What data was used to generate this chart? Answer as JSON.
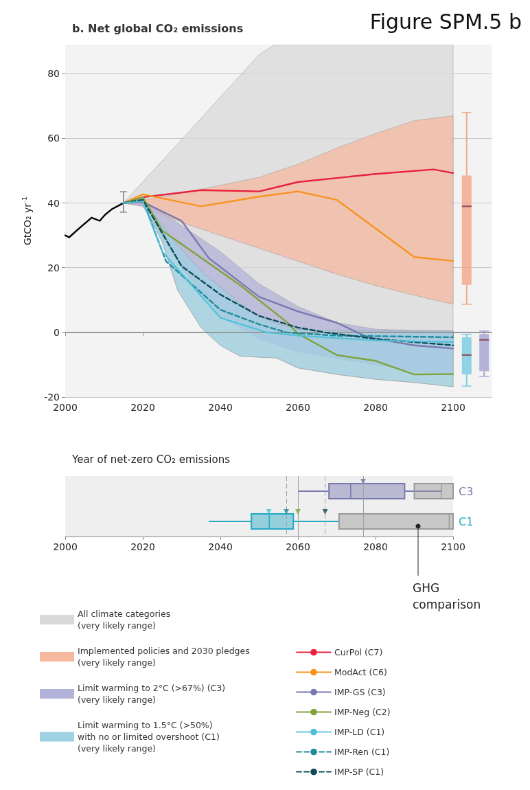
{
  "chart_data": [
    {
      "type": "line",
      "title": "b. Net global CO₂ emissions",
      "ylabel": "GtCO₂ yr$^{-1}$",
      "annotations": [
        "Figure SPM.5 b"
      ],
      "xlim": [
        2000,
        2110
      ],
      "xticks": [
        2000,
        2020,
        2040,
        2060,
        2080,
        2100
      ],
      "ylim": [
        -20,
        89
      ],
      "yticks": [
        -20,
        0,
        20,
        40,
        60,
        80
      ],
      "grid": "y",
      "legend": "bottom",
      "ref_lines": [
        {
          "axis": "y",
          "value": 0,
          "color": "#999999",
          "line_style": "solid"
        }
      ],
      "series": [
        {
          "name": "All climate categories\n(very likely range)",
          "type": "area",
          "color": "#d9d9d9",
          "x": [
            2015,
            2020,
            2025,
            2029,
            2035,
            2040,
            2045,
            2050,
            2054,
            2060,
            2070,
            2080,
            2090,
            2100
          ],
          "values": [
            null,
            null,
            null,
            null,
            null,
            null,
            null,
            null,
            null,
            null,
            null,
            null,
            null,
            null
          ],
          "upper": [
            40,
            46.6,
            53.1,
            58.3,
            66.2,
            72.8,
            79.3,
            85.9,
            89,
            89,
            89,
            89,
            89,
            89
          ],
          "lower": [
            40,
            40,
            28,
            13,
            1.5,
            -4,
            -7.3,
            -7.7,
            -7.8,
            -11,
            -13,
            -14.5,
            -15.5,
            -16.8
          ]
        },
        {
          "name": "Implemented policies and 2030 pledges\n(very likely range)",
          "type": "area",
          "color": "#f6b9a0",
          "x": [
            2015,
            2020,
            2030,
            2040,
            2050,
            2060,
            2070,
            2080,
            2090,
            2100
          ],
          "values": [
            null,
            null,
            null,
            null,
            null,
            null,
            null,
            null,
            null,
            null
          ],
          "upper": [
            40,
            41,
            43,
            45.5,
            48,
            52,
            57,
            61.5,
            65.5,
            67
          ],
          "lower": [
            40,
            39,
            34,
            30,
            26,
            22,
            18,
            14.5,
            11.5,
            8.7
          ]
        },
        {
          "name": "Limit warming to 2°C (>67%) (C3)\n(very likely range)",
          "type": "area",
          "color": "#b3b2d8",
          "x": [
            2015,
            2020,
            2030,
            2040,
            2050,
            2060,
            2070,
            2080,
            2090,
            2100
          ],
          "values": [
            null,
            null,
            null,
            null,
            null,
            null,
            null,
            null,
            null,
            null
          ],
          "upper": [
            40,
            41,
            33,
            25,
            15,
            8,
            3,
            1,
            0.6,
            0.5
          ],
          "lower": [
            40,
            39,
            20,
            5,
            -2,
            -6,
            -8,
            -10,
            -12,
            -13
          ]
        },
        {
          "name": "Limit warming to 1.5°C (>50%)\nwith no or limited overshoot (C1)\n(very likely range)",
          "type": "area",
          "color": "#9fd2e3",
          "x": [
            2015,
            2020,
            2025,
            2029,
            2035,
            2040,
            2045,
            2050,
            2055,
            2060,
            2070,
            2080,
            2090,
            2100
          ],
          "values": [
            null,
            null,
            null,
            null,
            null,
            null,
            null,
            null,
            null,
            null,
            null,
            null,
            null,
            null
          ],
          "upper": [
            40,
            41,
            33,
            27,
            19,
            14,
            9,
            5,
            2.5,
            1,
            0.5,
            0.4,
            0.4,
            0.4
          ],
          "lower": [
            40,
            40,
            28,
            13,
            1.5,
            -4,
            -7.3,
            -7.7,
            -8,
            -11,
            -13,
            -14.5,
            -15.5,
            -16.8
          ]
        },
        {
          "color": "#000000",
          "x": [
            2000,
            2001,
            2003.7,
            2006.8,
            2008.9,
            2010.2,
            2012,
            2015
          ],
          "values": [
            30,
            29.4,
            32.3,
            35.5,
            34.5,
            36.3,
            38.1,
            40
          ],
          "errors": [
            null,
            null,
            null,
            null,
            null,
            null,
            null,
            [
              37.2,
              43.5
            ]
          ]
        },
        {
          "name": "CurPol (C7)",
          "color": "#e8203a",
          "x": [
            2015,
            2020,
            2035,
            2050,
            2060,
            2080,
            2095,
            2100
          ],
          "values": [
            40,
            41.8,
            44,
            43.6,
            46.5,
            49,
            50.4,
            49.3
          ]
        },
        {
          "name": "ModAct (C6)",
          "color": "#f7931e",
          "x": [
            2015,
            2020,
            2035,
            2050,
            2060,
            2070,
            2090,
            2100
          ],
          "values": [
            40,
            42.7,
            39,
            42,
            43.6,
            41,
            23.3,
            22.1
          ]
        },
        {
          "name": "IMP-GS (C3)",
          "color": "#7b78b0",
          "x": [
            2015,
            2020,
            2030,
            2037,
            2050,
            2060,
            2070,
            2078,
            2090,
            2100
          ],
          "values": [
            40,
            40.3,
            34.5,
            23,
            11,
            6.5,
            3,
            -1.5,
            -4,
            -5
          ]
        },
        {
          "name": "IMP-Neg (C2)",
          "color": "#7fa33a",
          "x": [
            2015,
            2020,
            2025,
            2045,
            2057,
            2060,
            2070,
            2080,
            2090,
            2100
          ],
          "values": [
            40,
            41.8,
            31.5,
            14.7,
            3.3,
            -0.4,
            -7,
            -8.8,
            -13,
            -12.9
          ]
        },
        {
          "name": "IMP-LD (C1)",
          "color": "#4fc0d8",
          "line_style": "dotted",
          "x": [
            2015,
            2020,
            2025,
            2040,
            2052,
            2060,
            2080,
            2100
          ],
          "values": [
            40,
            40.5,
            25,
            4.5,
            0,
            -1,
            -2.5,
            -3
          ]
        },
        {
          "name": "IMP-Ren (C1)",
          "color": "#1e8a9a",
          "line_style": "dashed",
          "x": [
            2015,
            2020,
            2026,
            2040,
            2050,
            2057,
            2070,
            2100
          ],
          "values": [
            40,
            41,
            22,
            7,
            2.5,
            0,
            -1,
            -1.5
          ]
        },
        {
          "name": "IMP-SP (C1)",
          "color": "#0d4b57",
          "line_style": "dashed",
          "x": [
            2015,
            2020,
            2030,
            2040,
            2050,
            2060,
            2067,
            2080,
            2100
          ],
          "values": [
            40,
            41,
            20.5,
            11.7,
            5.1,
            1.5,
            0,
            -2,
            -4
          ]
        },
        {
          "type": "box",
          "color": "#f2a98e",
          "x": [
            2103.5
          ],
          "boxes": [
            {
              "low": 8.7,
              "q1": 14.7,
              "median": 39,
              "q3": 48.5,
              "high": 68
            }
          ]
        },
        {
          "type": "box",
          "color": "#7fcde3",
          "x": [
            2103.5
          ],
          "boxes": [
            {
              "low": -16.6,
              "q1": -13,
              "median": -7,
              "q3": -1.5,
              "high": -0.6
            }
          ]
        },
        {
          "type": "box",
          "color": "#a9a7d3",
          "x": [
            2108
          ],
          "boxes": [
            {
              "low": -13.6,
              "q1": -12,
              "median": -2.3,
              "q3": -0.5,
              "high": 0.4
            }
          ]
        }
      ]
    },
    {
      "type": "box",
      "orientation": "horizontal",
      "title": "Year of net-zero CO₂ emissions",
      "categories": [
        "C3",
        "C1"
      ],
      "xlim": [
        2000,
        2100
      ],
      "xticks": [
        2000,
        2020,
        2040,
        2060,
        2080,
        2100
      ],
      "annotations": [
        "GHG\ncomparison"
      ],
      "ref_lines": [
        {
          "axis": "x",
          "value": 2057,
          "line_style": "dashed",
          "color": "#a0a0a0"
        },
        {
          "axis": "x",
          "value": 2060,
          "line_style": "solid",
          "color": "#a0a0a0"
        },
        {
          "axis": "x",
          "value": 2067,
          "line_style": "dashed",
          "color": "#a0a0a0"
        },
        {
          "axis": "x",
          "value": 2076.8,
          "line_style": "solid",
          "color": "#a0a0a0"
        }
      ],
      "series": [
        {
          "colors": [
            "#7b78b0",
            "#27a9c4"
          ],
          "boxes": [
            {
              "low": 2060,
              "q1": 2068,
              "median": 2073.6,
              "q3": 2087.5,
              "high": 2097
            },
            {
              "low": 2037,
              "q1": 2048,
              "median": 2052.6,
              "q3": 2058.8,
              "high": 2070.6
            }
          ]
        },
        {
          "color": "#9a9a9a",
          "boxes": [
            {
              "low": 2090,
              "q1": 2090,
              "median": 2097,
              "q3": 2100,
              "high": 2100
            },
            {
              "low": 2070.6,
              "q1": 2070.6,
              "median": 2099,
              "q3": 2100,
              "high": 2100
            }
          ]
        },
        {
          "type": "scatter",
          "marker": "triangle",
          "x": [
            "C3",
            "C1",
            "C1",
            "C1",
            "C1"
          ],
          "values": [
            2076.8,
            2052.5,
            2057,
            2060,
            2067
          ],
          "colors": [
            "#7b78b0",
            "#4fc0d8",
            "#1e8a9a",
            "#7fa33a",
            "#0d4b57"
          ]
        }
      ]
    }
  ]
}
